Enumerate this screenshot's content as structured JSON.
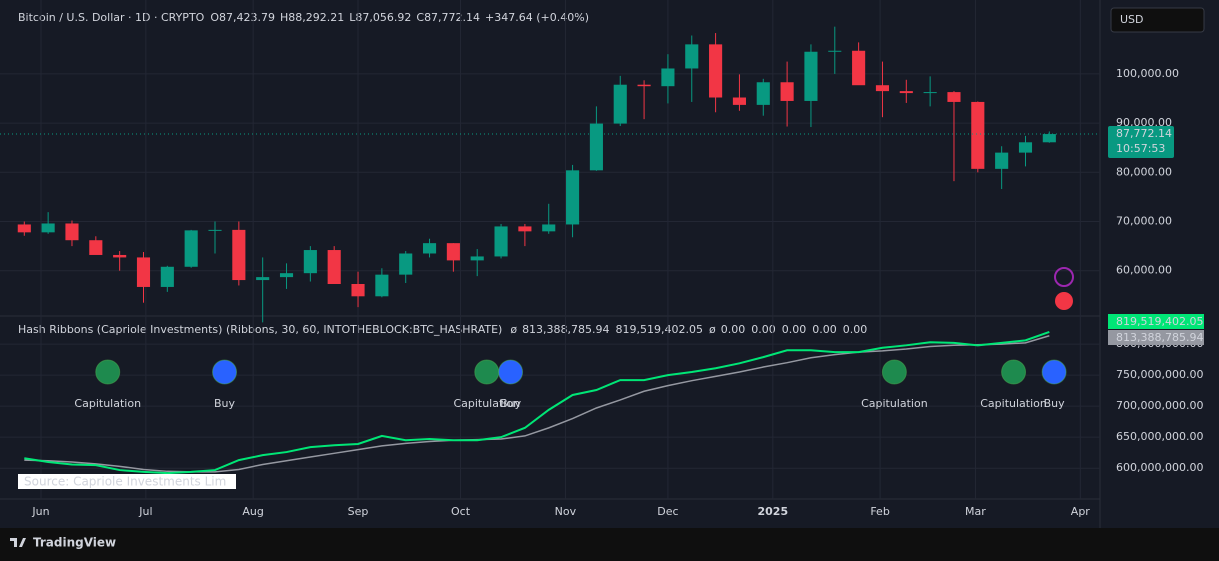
{
  "header": {
    "symbol": "Bitcoin / U.S. Dollar · 1D · CRYPTO",
    "ohlc": [
      {
        "k": "O",
        "v": "87,423.79"
      },
      {
        "k": "H",
        "v": "88,292.21"
      },
      {
        "k": "L",
        "v": "87,056.92"
      },
      {
        "k": "C",
        "v": "87,772.14"
      }
    ],
    "change": "+347.64 (+0.40%)",
    "currency": "USD",
    "price_badge": "87,772.14",
    "countdown": "10:57:53"
  },
  "indicator": {
    "title": "Hash Ribbons (Capriole Investments) (Ribbons, 30, 60, INTOTHEBLOCK:BTC_HASHRATE)",
    "symbol": "ø",
    "slow_value": "813,388,785.94",
    "fast_value": "819,519,402.05",
    "symbol2": "ø",
    "extras": [
      "0.00",
      "0.00",
      "0.00",
      "0.00",
      "0.00"
    ],
    "source": "Source: Capriole Investments Lim"
  },
  "footer": {
    "brand": "TradingView"
  },
  "chart_data": [
    {
      "type": "candlestick",
      "up_color": "#089981",
      "down_color": "#f23645",
      "open": [
        69400,
        67800,
        69600,
        66200,
        63200,
        62700,
        56700,
        60800,
        68200,
        68300,
        58100,
        58700,
        59500,
        64200,
        57300,
        54800,
        59200,
        63500,
        65600,
        62100,
        62900,
        69000,
        68000,
        69400,
        80400,
        89900,
        97800,
        97500,
        101100,
        106000,
        95200,
        93700,
        98300,
        94500,
        104500,
        104700,
        97700,
        96500,
        96100,
        96300,
        94300,
        80700,
        84000,
        86100
      ],
      "high": [
        70000,
        71900,
        70200,
        67000,
        64000,
        63800,
        61000,
        68300,
        70000,
        70000,
        62700,
        61500,
        65000,
        65000,
        59800,
        60500,
        64000,
        66500,
        65600,
        64400,
        69500,
        69500,
        73600,
        81500,
        93400,
        99600,
        98700,
        104000,
        107800,
        108300,
        99900,
        99000,
        102500,
        106000,
        109600,
        106400,
        102500,
        98800,
        99500,
        96500,
        94400,
        85300,
        87400,
        88300
      ],
      "low": [
        67100,
        67500,
        65000,
        63400,
        60000,
        53500,
        55700,
        60600,
        63500,
        57000,
        49500,
        56300,
        57800,
        57300,
        52600,
        54600,
        57500,
        62700,
        59800,
        58900,
        62500,
        65000,
        67500,
        66800,
        80300,
        89400,
        90800,
        94000,
        94300,
        92200,
        92500,
        91500,
        89300,
        89200,
        100000,
        97800,
        91200,
        94100,
        93400,
        78200,
        80000,
        76600,
        81200,
        86000
      ],
      "close": [
        67800,
        69600,
        66200,
        63200,
        62700,
        56700,
        60800,
        68200,
        68300,
        58100,
        58700,
        59500,
        64200,
        57300,
        54800,
        59200,
        63500,
        65600,
        62100,
        62900,
        69000,
        68000,
        69400,
        80400,
        89900,
        97800,
        97500,
        101100,
        106000,
        95200,
        93700,
        98300,
        94500,
        104500,
        104700,
        97700,
        96500,
        96100,
        96300,
        94300,
        80700,
        84000,
        86100,
        87772.14
      ],
      "ylim": [
        51000,
        114000
      ],
      "yticks": [
        {
          "value": 60000,
          "label": "60,000.00"
        },
        {
          "value": 70000,
          "label": "70,000.00"
        },
        {
          "value": 80000,
          "label": "80,000.00"
        },
        {
          "value": 90000,
          "label": "90,000.00"
        },
        {
          "value": 100000,
          "label": "100,000.00"
        }
      ],
      "xlim": [
        -0.6,
        45
      ],
      "xticks": [
        {
          "value": 0.7,
          "label": "Jun"
        },
        {
          "value": 5.1,
          "label": "Jul"
        },
        {
          "value": 9.6,
          "label": "Aug"
        },
        {
          "value": 14,
          "label": "Sep"
        },
        {
          "value": 18.3,
          "label": "Oct"
        },
        {
          "value": 22.7,
          "label": "Nov"
        },
        {
          "value": 27,
          "label": "Dec"
        },
        {
          "value": 31.4,
          "label": "2025"
        },
        {
          "value": 35.9,
          "label": "Feb"
        },
        {
          "value": 39.9,
          "label": "Mar"
        },
        {
          "value": 44.3,
          "label": "Apr"
        }
      ],
      "grid": true
    },
    {
      "type": "line",
      "series": [
        {
          "color": "#9598a1",
          "values": [
            613000000,
            612000000,
            610000000,
            607000000,
            603000000,
            598000000,
            595000000,
            594000000,
            594000000,
            598000000,
            606000000,
            612000000,
            618000000,
            624000000,
            630000000,
            636000000,
            640000000,
            643000000,
            645000000,
            646000000,
            647000000,
            652000000,
            665000000,
            680000000,
            697000000,
            710000000,
            724000000,
            733000000,
            741000000,
            748000000,
            755000000,
            763000000,
            770000000,
            778000000,
            783000000,
            787000000,
            789000000,
            792000000,
            796000000,
            798000000,
            799000000,
            800000000,
            802000000,
            813388785.94
          ]
        },
        {
          "color": "#00e676",
          "values": [
            616000000,
            610000000,
            606000000,
            605000000,
            597000000,
            594000000,
            592000000,
            594000000,
            597000000,
            613000000,
            621000000,
            626000000,
            634000000,
            637000000,
            639000000,
            652000000,
            645000000,
            647000000,
            645000000,
            645000000,
            650000000,
            665000000,
            694000000,
            718000000,
            726000000,
            742000000,
            742000000,
            750000000,
            755000000,
            761000000,
            769000000,
            779000000,
            790000000,
            790000000,
            787000000,
            787000000,
            794000000,
            798000000,
            803000000,
            802000000,
            798000000,
            802000000,
            806000000,
            819519402.05
          ]
        }
      ],
      "ylim": [
        552000000,
        842000000
      ],
      "yticks": [
        {
          "value": 600000000,
          "label": "600,000,000.00"
        },
        {
          "value": 650000000,
          "label": "650,000,000.00"
        },
        {
          "value": 700000000,
          "label": "700,000,000.00"
        },
        {
          "value": 750000000,
          "label": "750,000,000.00"
        },
        {
          "value": 800000000,
          "label": "800,000,000.00"
        }
      ],
      "xlim": [
        -0.6,
        45
      ],
      "annotations": [
        {
          "text": "Capitulation",
          "x": 3.5
        },
        {
          "text": "Buy",
          "x": 8.4
        },
        {
          "text": "Capitulation",
          "x": 19.4
        },
        {
          "text": "Buy",
          "x": 20.4
        },
        {
          "text": "Capitulation",
          "x": 36.5
        },
        {
          "text": "Capitulation",
          "x": 41.5
        },
        {
          "text": "Buy",
          "x": 43.2
        }
      ],
      "grid": true
    }
  ]
}
